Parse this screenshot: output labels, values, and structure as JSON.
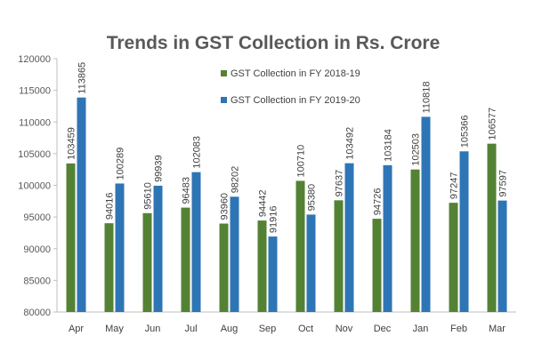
{
  "chart_data": {
    "type": "bar",
    "title": "Trends in GST Collection in Rs. Crore",
    "categories": [
      "Apr",
      "May",
      "Jun",
      "Jul",
      "Aug",
      "Sep",
      "Oct",
      "Nov",
      "Dec",
      "Jan",
      "Feb",
      "Mar"
    ],
    "series": [
      {
        "name": "GST Collection in FY 2018-19",
        "color": "#548235",
        "values": [
          103459,
          94016,
          95610,
          96483,
          93960,
          94442,
          100710,
          97637,
          94726,
          102503,
          97247,
          106577
        ]
      },
      {
        "name": "GST Collection in FY 2019-20",
        "color": "#2e75b6",
        "values": [
          113865,
          100289,
          99939,
          102083,
          98202,
          91916,
          95380,
          103492,
          103184,
          110818,
          105366,
          97597
        ]
      }
    ],
    "ylim": [
      80000,
      120000
    ],
    "yticks": [
      80000,
      85000,
      90000,
      95000,
      100000,
      105000,
      110000,
      115000,
      120000
    ],
    "xlabel": "",
    "ylabel": "",
    "grid": false,
    "legend_position": "top"
  }
}
